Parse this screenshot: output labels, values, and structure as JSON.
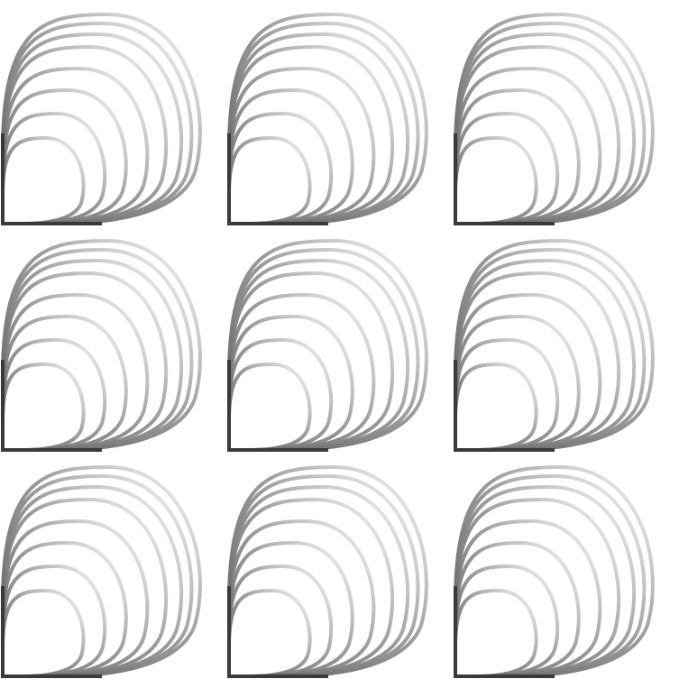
{
  "pattern": {
    "rows": 3,
    "columns": 3,
    "tile_motif": "quarter-arc-fan",
    "arcs_per_tile": 8,
    "colors": {
      "background": "#ffffff",
      "stroke_strong": "#5a5a5a",
      "stroke_faint": "#ffffff",
      "base_line": "#3a3a3a"
    }
  }
}
